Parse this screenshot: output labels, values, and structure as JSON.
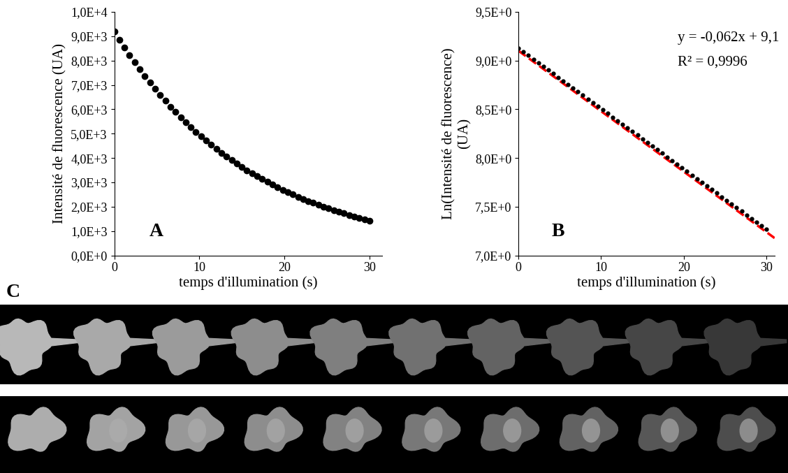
{
  "chart_data": [
    {
      "type": "scatter",
      "panel_label": "A",
      "x": [
        0,
        0.6,
        1.2,
        1.8,
        2.4,
        3,
        3.6,
        4.2,
        4.8,
        5.4,
        6,
        6.6,
        7.2,
        7.8,
        8.4,
        9,
        9.6,
        10.2,
        10.8,
        11.4,
        12,
        12.6,
        13.2,
        13.8,
        14.4,
        15,
        15.6,
        16.2,
        16.8,
        17.4,
        18,
        18.6,
        19.2,
        19.8,
        20.4,
        21,
        21.6,
        22.2,
        22.8,
        23.4,
        24,
        24.6,
        25.2,
        25.8,
        26.4,
        27,
        27.6,
        28.2,
        28.8,
        29.4,
        30
      ],
      "values": [
        9200,
        8864,
        8540,
        8229,
        7928,
        7639,
        7360,
        7091,
        6832,
        6583,
        6343,
        6111,
        5888,
        5673,
        5466,
        5267,
        5074,
        4889,
        4711,
        4539,
        4373,
        4213,
        4059,
        3911,
        3768,
        3631,
        3498,
        3370,
        3247,
        3129,
        3014,
        2904,
        2798,
        2696,
        2598,
        2503,
        2411,
        2323,
        2239,
        2157,
        2078,
        2002,
        1929,
        1859,
        1791,
        1726,
        1663,
        1602,
        1543,
        1487,
        1433
      ],
      "color": "#000000",
      "marker": "o",
      "x_label": "temps d'illumination (s)",
      "y_label": "Intensité de fluorescence (UA)",
      "xlim": [
        0,
        31.5
      ],
      "xticks": [
        0,
        10,
        20,
        30
      ],
      "ylim": [
        0,
        10000
      ],
      "yticks": [
        {
          "value": 0,
          "label": "0,0E+0"
        },
        {
          "value": 1000,
          "label": "1,0E+3"
        },
        {
          "value": 2000,
          "label": "2,0E+3"
        },
        {
          "value": 3000,
          "label": "3,0E+3"
        },
        {
          "value": 4000,
          "label": "4,0E+3"
        },
        {
          "value": 5000,
          "label": "5,0E+3"
        },
        {
          "value": 6000,
          "label": "6,0E+3"
        },
        {
          "value": 7000,
          "label": "7,0E+3"
        },
        {
          "value": 8000,
          "label": "8,0E+3"
        },
        {
          "value": 9000,
          "label": "9,0E+3"
        },
        {
          "value": 10000,
          "label": "1,0E+4"
        }
      ]
    },
    {
      "type": "scatter",
      "panel_label": "B",
      "x": [
        0,
        0.6,
        1.2,
        1.8,
        2.4,
        3,
        3.6,
        4.2,
        4.8,
        5.4,
        6,
        6.6,
        7.2,
        7.8,
        8.4,
        9,
        9.6,
        10.2,
        10.8,
        11.4,
        12,
        12.6,
        13.2,
        13.8,
        14.4,
        15,
        15.6,
        16.2,
        16.8,
        17.4,
        18,
        18.6,
        19.2,
        19.8,
        20.4,
        21,
        21.6,
        22.2,
        22.8,
        23.4,
        24,
        24.6,
        25.2,
        25.8,
        26.4,
        27,
        27.6,
        28.2,
        28.8,
        29.4,
        30
      ],
      "values": [
        9.127,
        9.09,
        9.053,
        9.015,
        8.978,
        8.941,
        8.904,
        8.867,
        8.829,
        8.792,
        8.755,
        8.718,
        8.681,
        8.643,
        8.606,
        8.569,
        8.532,
        8.495,
        8.457,
        8.42,
        8.383,
        8.346,
        8.309,
        8.271,
        8.234,
        8.197,
        8.16,
        8.123,
        8.085,
        8.048,
        8.011,
        7.974,
        7.937,
        7.899,
        7.862,
        7.825,
        7.788,
        7.751,
        7.713,
        7.676,
        7.639,
        7.602,
        7.565,
        7.527,
        7.49,
        7.453,
        7.416,
        7.379,
        7.341,
        7.304,
        7.267
      ],
      "color": "#000000",
      "marker": "o",
      "trendline": {
        "slope": -0.062,
        "intercept": 9.1,
        "color": "#ff0000",
        "line_style": "dashed",
        "equation": "y = -0,062x + 9,1",
        "r_squared": "R² = 0,9996"
      },
      "x_label": "temps d'illumination (s)",
      "y_label": "Ln(Intensité de fluorescence)\n(UA)",
      "xlim": [
        0,
        31
      ],
      "xticks": [
        0,
        10,
        20,
        30
      ],
      "ylim": [
        7.0,
        9.5
      ],
      "yticks": [
        {
          "value": 7.0,
          "label": "7,0E+0"
        },
        {
          "value": 7.5,
          "label": "7,5E+0"
        },
        {
          "value": 8.0,
          "label": "8,0E+0"
        },
        {
          "value": 8.5,
          "label": "8,5E+0"
        },
        {
          "value": 9.0,
          "label": "9,0E+0"
        },
        {
          "value": 9.5,
          "label": "9,5E+0"
        }
      ]
    }
  ],
  "image_panel": {
    "label": "C",
    "rows": 2,
    "frames_per_row": 10
  }
}
